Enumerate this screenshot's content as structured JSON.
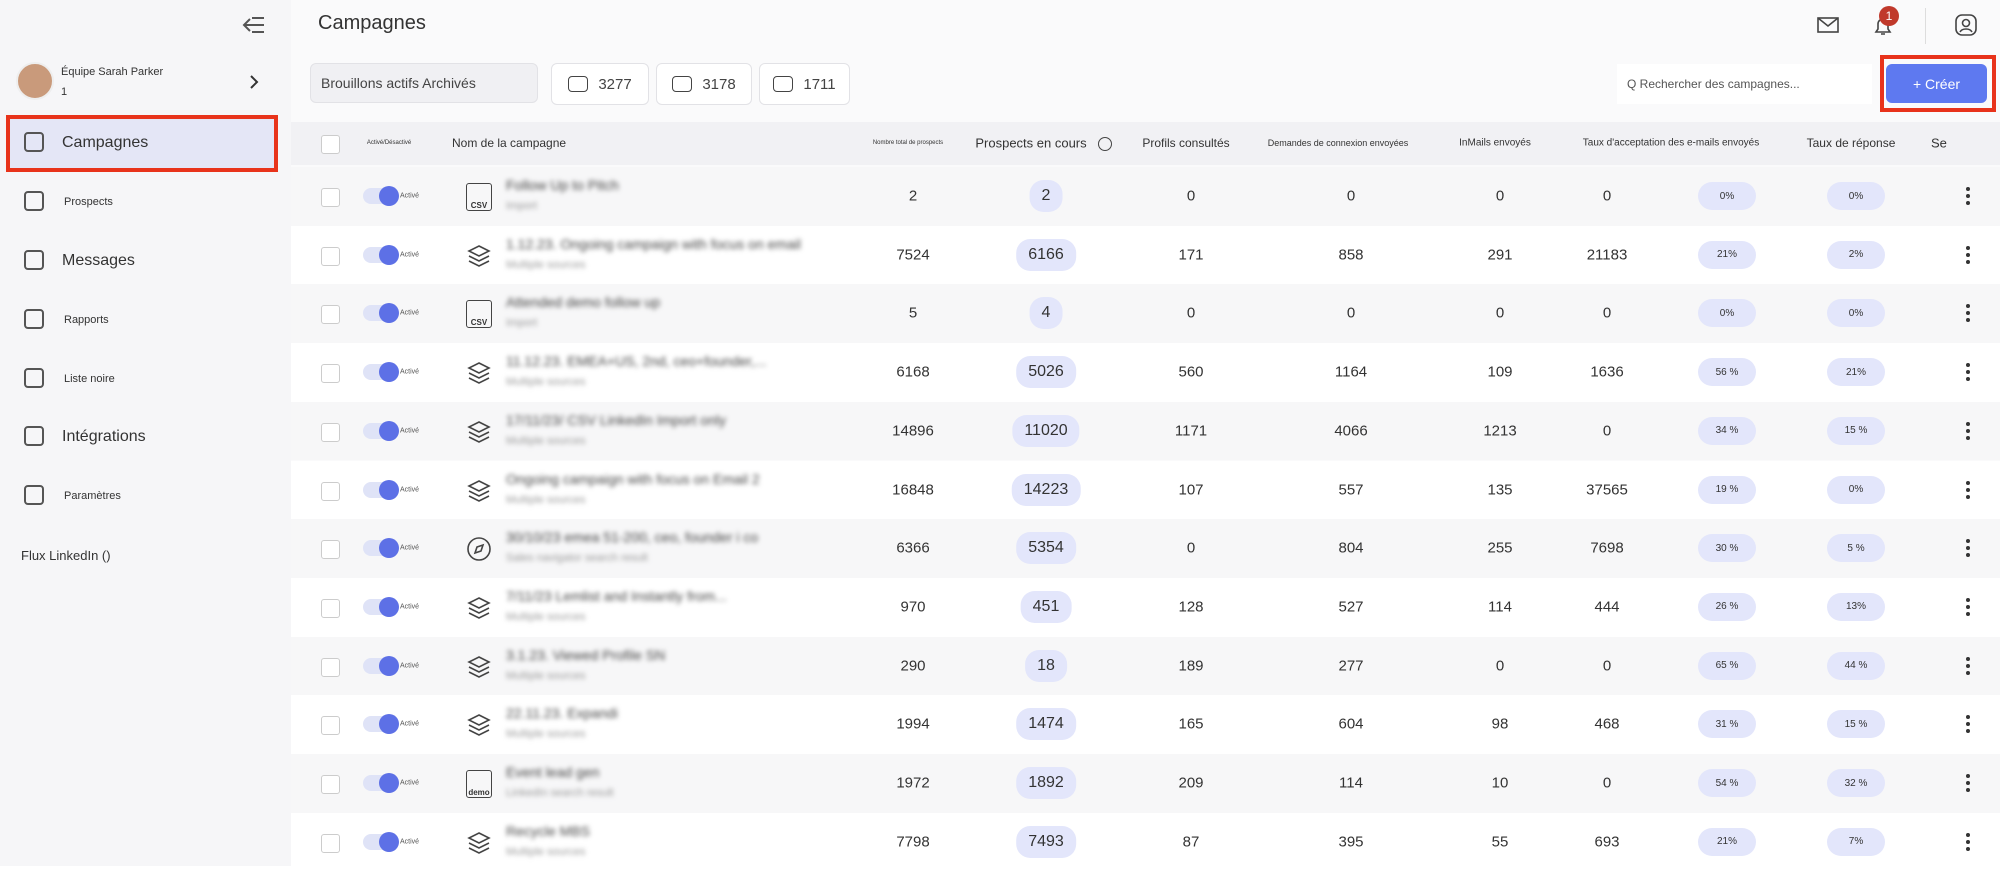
{
  "sidebar": {
    "team_name": "Équipe Sarah Parker",
    "team_count": "1",
    "nav": [
      {
        "label": "Campagnes"
      },
      {
        "label": "Prospects"
      },
      {
        "label": "Messages"
      },
      {
        "label": "Rapports"
      },
      {
        "label": "Liste noire"
      },
      {
        "label": "Intégrations"
      },
      {
        "label": "Paramètres"
      }
    ],
    "footer": "Flux LinkedIn ()"
  },
  "header": {
    "title": "Campagnes",
    "notification_count": 1
  },
  "toolbar": {
    "tabs": "Brouillons actifs Archivés",
    "stats": [
      3277,
      3178,
      1711
    ],
    "search_placeholder": "Q Rechercher des campagnes...",
    "create_button": "+ Créer"
  },
  "table": {
    "columns": [
      "Activé/Désactivé",
      "Nom de la campagne",
      "Nombre total de prospects",
      "Prospects en cours",
      "Profils consultés",
      "Demandes de connexion envoyées",
      "InMails envoyés",
      "Taux d'acceptation des e-mails envoyés",
      "Taux de réponse",
      "Se"
    ],
    "rows": [
      {
        "status": "Activé",
        "name": "Follow Up to Pitch",
        "source": "Import",
        "icon": "CSV",
        "cells": [
          2,
          2,
          0,
          0,
          0,
          0,
          "0%",
          "0%"
        ]
      },
      {
        "status": "Activé",
        "name": "1.12.23. Ongoing campaign with focus on email",
        "source": "Multiple sources",
        "cells": [
          7524,
          6166,
          171,
          858,
          291,
          21183,
          "21%",
          "2%"
        ]
      },
      {
        "status": "Activé",
        "name": "Attended demo follow up",
        "source": "Import",
        "icon": "CSV",
        "cells": [
          5,
          4,
          0,
          0,
          0,
          0,
          "0%",
          "0%"
        ]
      },
      {
        "status": "Activé",
        "name": "11.12.23. EMEA+US, 2nd, ceo+founder,...",
        "source": "Multiple sources",
        "cells": [
          6168,
          5026,
          560,
          1164,
          109,
          1636,
          "56 %",
          "21%"
        ]
      },
      {
        "status": "Activé",
        "name": "17/11/23/ CSV LinkedIn Import only",
        "source": "Multiple sources",
        "cells": [
          14896,
          11020,
          1171,
          4066,
          1213,
          0,
          "34 %",
          "15 %"
        ]
      },
      {
        "status": "Activé",
        "name": "Ongoing campaign with focus on Email 2",
        "source": "Multiple sources",
        "cells": [
          16848,
          14223,
          107,
          557,
          135,
          37565,
          "19 %",
          "0%"
        ]
      },
      {
        "status": "Activé",
        "name": "30/10/23 emea 51-200, ceo, founder i co",
        "source": "Sales navigator search result",
        "cells": [
          6366,
          5354,
          0,
          804,
          255,
          7698,
          "30 %",
          "5 %"
        ]
      },
      {
        "status": "Activé",
        "name": "7/11/23 Lemlist and Instantly from...",
        "source": "Multiple sources",
        "cells": [
          970,
          451,
          128,
          527,
          114,
          444,
          "26 %",
          "13%"
        ]
      },
      {
        "status": "Activé",
        "name": "3.1.23. Viewed Profile SN",
        "source": "Multiple sources",
        "cells": [
          290,
          18,
          189,
          277,
          0,
          0,
          "65 %",
          "44 %"
        ]
      },
      {
        "status": "Activé",
        "name": "22.11.23. Expandi",
        "source": "Multiple sources",
        "cells": [
          1994,
          1474,
          165,
          604,
          98,
          468,
          "31 %",
          "15 %"
        ]
      },
      {
        "status": "Activé",
        "name": "Event lead gen",
        "source": "LinkedIn search result",
        "icon": "demo",
        "cells": [
          1972,
          1892,
          209,
          114,
          10,
          0,
          "54 %",
          "32 %"
        ]
      },
      {
        "status": "Activé",
        "name": "Recycle MBS",
        "source": "Multiple sources",
        "cells": [
          7798,
          7493,
          87,
          395,
          55,
          693,
          "21%",
          "7%"
        ]
      }
    ]
  }
}
